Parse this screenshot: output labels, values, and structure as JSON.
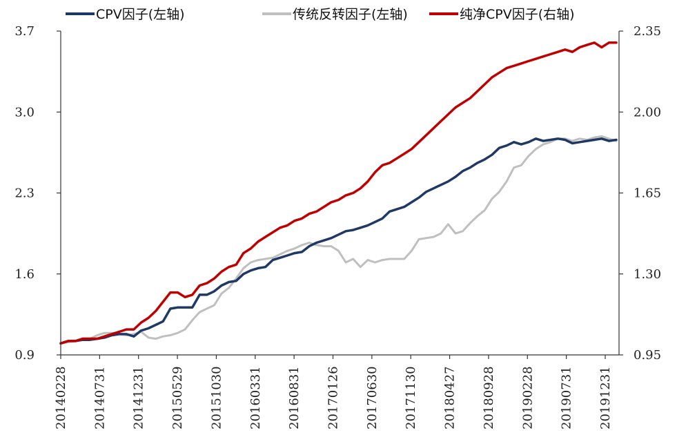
{
  "chart_data": {
    "type": "line",
    "title": "",
    "xlabel": "",
    "ylabel_left": "",
    "ylabel_right": "",
    "legend_position": "top",
    "grid": false,
    "x_tick_labels": [
      "20140228",
      "20140731",
      "20141231",
      "20150529",
      "20151030",
      "20160331",
      "20160831",
      "20170126",
      "20170630",
      "20171130",
      "20180427",
      "20180928",
      "20190228",
      "20190731",
      "20191231"
    ],
    "left_axis": {
      "ylim": [
        0.9,
        3.7
      ],
      "ticks": [
        "0.9",
        "1.6",
        "2.3",
        "3.0",
        "3.7"
      ]
    },
    "right_axis": {
      "ylim": [
        0.95,
        2.35
      ],
      "ticks": [
        "0.95",
        "1.30",
        "1.65",
        "2.00",
        "2.35"
      ]
    },
    "series": [
      {
        "name": "CPV因子(左轴)",
        "axis": "left",
        "color": "#1f3864",
        "values": [
          1.0,
          1.02,
          1.02,
          1.03,
          1.03,
          1.04,
          1.05,
          1.07,
          1.08,
          1.08,
          1.06,
          1.11,
          1.13,
          1.16,
          1.19,
          1.3,
          1.31,
          1.31,
          1.31,
          1.42,
          1.42,
          1.45,
          1.5,
          1.53,
          1.54,
          1.6,
          1.63,
          1.65,
          1.66,
          1.72,
          1.74,
          1.76,
          1.78,
          1.79,
          1.84,
          1.87,
          1.89,
          1.91,
          1.94,
          1.97,
          1.98,
          2.0,
          2.02,
          2.05,
          2.08,
          2.14,
          2.16,
          2.18,
          2.22,
          2.26,
          2.31,
          2.34,
          2.37,
          2.4,
          2.44,
          2.49,
          2.52,
          2.56,
          2.59,
          2.63,
          2.69,
          2.71,
          2.74,
          2.72,
          2.74,
          2.77,
          2.75,
          2.76,
          2.77,
          2.76,
          2.73,
          2.74,
          2.75,
          2.76,
          2.77,
          2.75,
          2.76
        ]
      },
      {
        "name": "传统反转因子(左轴)",
        "axis": "left",
        "color": "#bfbfbf",
        "values": [
          1.0,
          1.01,
          1.02,
          1.03,
          1.04,
          1.07,
          1.09,
          1.09,
          1.08,
          1.07,
          1.08,
          1.1,
          1.05,
          1.04,
          1.06,
          1.07,
          1.09,
          1.12,
          1.2,
          1.27,
          1.3,
          1.33,
          1.43,
          1.48,
          1.56,
          1.65,
          1.7,
          1.72,
          1.73,
          1.74,
          1.77,
          1.8,
          1.82,
          1.85,
          1.87,
          1.85,
          1.84,
          1.84,
          1.8,
          1.7,
          1.73,
          1.66,
          1.72,
          1.7,
          1.72,
          1.73,
          1.73,
          1.73,
          1.8,
          1.9,
          1.91,
          1.92,
          1.95,
          2.03,
          1.95,
          1.97,
          2.04,
          2.1,
          2.15,
          2.25,
          2.31,
          2.4,
          2.52,
          2.54,
          2.62,
          2.68,
          2.72,
          2.74,
          2.77,
          2.77,
          2.75,
          2.77,
          2.76,
          2.78,
          2.79,
          2.77,
          2.75
        ]
      },
      {
        "name": "纯净CPV因子(右轴)",
        "axis": "right",
        "color": "#c00000",
        "values": [
          1.0,
          1.01,
          1.01,
          1.02,
          1.02,
          1.02,
          1.03,
          1.04,
          1.05,
          1.06,
          1.06,
          1.09,
          1.11,
          1.14,
          1.18,
          1.22,
          1.22,
          1.2,
          1.21,
          1.25,
          1.26,
          1.28,
          1.31,
          1.33,
          1.34,
          1.39,
          1.41,
          1.44,
          1.46,
          1.48,
          1.5,
          1.51,
          1.53,
          1.54,
          1.56,
          1.57,
          1.59,
          1.61,
          1.62,
          1.64,
          1.65,
          1.67,
          1.7,
          1.74,
          1.77,
          1.78,
          1.8,
          1.82,
          1.84,
          1.87,
          1.9,
          1.93,
          1.96,
          1.99,
          2.02,
          2.04,
          2.06,
          2.09,
          2.12,
          2.15,
          2.17,
          2.19,
          2.2,
          2.21,
          2.22,
          2.23,
          2.24,
          2.25,
          2.26,
          2.27,
          2.26,
          2.28,
          2.29,
          2.3,
          2.28,
          2.3,
          2.3
        ]
      }
    ]
  }
}
